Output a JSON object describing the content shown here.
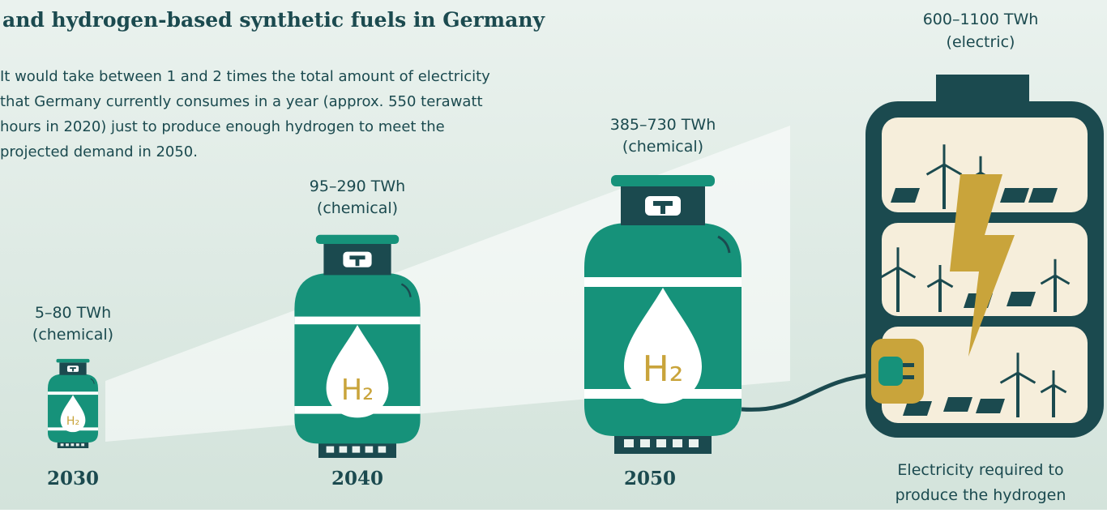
{
  "header": {
    "title": "and hydrogen-based synthetic fuels in Germany",
    "description": [
      "It would take between 1 and 2 times the total amount of electricity",
      "that Germany currently consumes in a year (approx. 550 terawatt",
      "hours in 2020) just to produce enough hydrogen to meet the",
      "projected demand in 2050."
    ]
  },
  "cylinders": [
    {
      "year": "2030",
      "amount": "5–80 TWh",
      "kind": "(chemical)",
      "symbol": "H₂"
    },
    {
      "year": "2040",
      "amount": "95–290 TWh",
      "kind": "(chemical)",
      "symbol": "H₂"
    },
    {
      "year": "2050",
      "amount": "385–730 TWh",
      "kind": "(chemical)",
      "symbol": "H₂"
    }
  ],
  "battery": {
    "amount": "600–1100 TWh",
    "kind": "(electric)",
    "caption": [
      "Electricity required to",
      "produce the hydrogen"
    ]
  }
}
